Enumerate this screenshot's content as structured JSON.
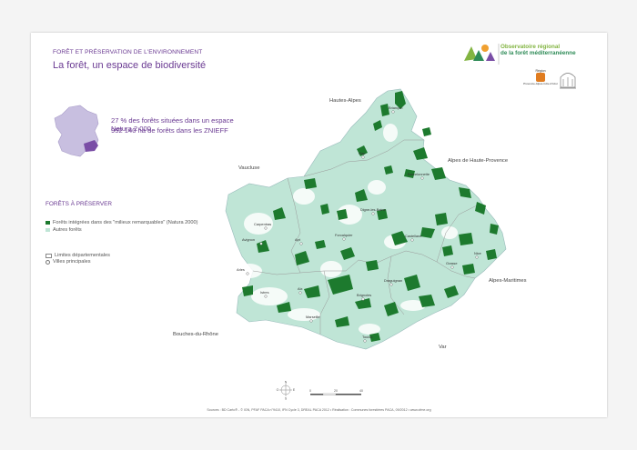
{
  "header": {
    "section": "FORÊT ET PRÉSERVATION DE L'ENVIRONNEMENT",
    "title": "La forêt, un espace de biodiversité"
  },
  "stats": {
    "line1": "27 % des forêts situées dans un espace Natura 2 000",
    "line2": "952 140 ha de forêts dans les ZNIEFF"
  },
  "legend": {
    "title": "FORÊTS À PRÉSERVER",
    "items": [
      {
        "label": "Forêts intégrées dans des \"milieux remarquables\" (Natura 2000)",
        "color": "#1d7a2e"
      },
      {
        "label": "Autres forêts",
        "color": "#bfe5d6"
      }
    ],
    "boundaries": "Limites départementales",
    "cities": "Villes principales"
  },
  "logo": {
    "line1": "Observatoire régional",
    "line2": "de la forêt méditerranéenne"
  },
  "region_logo": {
    "word": "Région",
    "name": "Provence-Alpes-Côte d'Azur"
  },
  "departments": {
    "hautes_alpes": "Hautes-Alpes",
    "alpes_haute_provence": "Alpes de Haute-Provence",
    "vaucluse": "Vaucluse",
    "alpes_maritimes": "Alpes-Maritimes",
    "bouches_du_rhone": "Bouches-du-Rhône",
    "var": "Var"
  },
  "cities": {
    "briancon": "Briançon",
    "gap": "Gap",
    "barcelonnette": "Barcelonnette",
    "digne": "Digne-les-Bains",
    "forcalquier": "Forcalquier",
    "carpentras": "Carpentras",
    "avignon": "Avignon",
    "apt": "Apt",
    "castellane": "Castellane",
    "nice": "Nice",
    "grasse": "Grasse",
    "draguignan": "Draguignan",
    "brignoles": "Brignoles",
    "aix": "Aix",
    "istres": "Istres",
    "marseille": "Marseille",
    "toulon": "Toulon",
    "arles": "Arles"
  },
  "compass": {
    "n": "N",
    "o": "O",
    "e": "E",
    "s": "S"
  },
  "scale": {
    "t0": "0",
    "t1": "20",
    "t2": "40"
  },
  "footer": "Sources : BD Carto® - © IGN, PFAF PACA n°9410, IFN Cycle 3, DREAL PACA 2012 • Réalisation : Communes forestières PACA, 09/2012 • www.ofme.org",
  "colors": {
    "natura": "#1d7a2e",
    "other_forest": "#bfe5d6",
    "accent": "#6a3a92",
    "france": "#c8bfe0",
    "paca": "#7a4ea6"
  }
}
